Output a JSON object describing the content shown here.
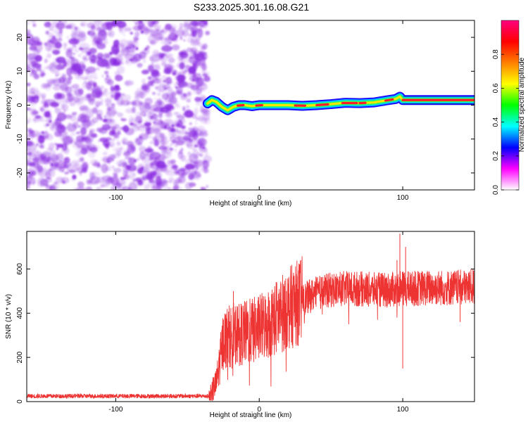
{
  "title": "S233.2025.301.16.08.G21",
  "chart_data": [
    {
      "type": "heatmap",
      "xlabel": "Height of straight line (km)",
      "ylabel": "Frequency (Hz)",
      "xlim": [
        -162,
        150
      ],
      "ylim": [
        -25,
        25
      ],
      "xticks": [
        -100,
        0,
        100
      ],
      "yticks": [
        -20,
        -10,
        0,
        10,
        20
      ],
      "colorbar": {
        "label": "Normalized spectral amplitude",
        "range": [
          0,
          1
        ],
        "ticks": [
          "0.0",
          "0.2",
          "0.4",
          "0.6",
          "0.8"
        ],
        "stops": [
          "#ffffff",
          "#ff00ff",
          "#0000ff",
          "#00ffff",
          "#00ff00",
          "#ffff00",
          "#ff8000",
          "#ff0000",
          "#ff0080"
        ]
      },
      "noise_region": {
        "x_from": -162,
        "x_to": -36,
        "color": "#8a2be2"
      },
      "signal_track": [
        {
          "x": -36,
          "f": 0.5
        },
        {
          "x": -33,
          "f": 1.5
        },
        {
          "x": -30,
          "f": 1.0
        },
        {
          "x": -26,
          "f": -0.5
        },
        {
          "x": -22,
          "f": -1.5
        },
        {
          "x": -18,
          "f": -0.5
        },
        {
          "x": -14,
          "f": 0.0
        },
        {
          "x": -10,
          "f": 0.0
        },
        {
          "x": -5,
          "f": -0.3
        },
        {
          "x": 0,
          "f": 0.0
        },
        {
          "x": 10,
          "f": 0.0
        },
        {
          "x": 20,
          "f": 0.0
        },
        {
          "x": 30,
          "f": -0.2
        },
        {
          "x": 40,
          "f": 0.0
        },
        {
          "x": 50,
          "f": 0.3
        },
        {
          "x": 60,
          "f": 0.7
        },
        {
          "x": 70,
          "f": 0.6
        },
        {
          "x": 80,
          "f": 0.8
        },
        {
          "x": 90,
          "f": 1.5
        },
        {
          "x": 95,
          "f": 1.8
        },
        {
          "x": 98,
          "f": 2.5
        },
        {
          "x": 100,
          "f": 1.5
        },
        {
          "x": 110,
          "f": 1.5
        },
        {
          "x": 130,
          "f": 1.5
        },
        {
          "x": 150,
          "f": 1.5
        }
      ]
    },
    {
      "type": "line",
      "xlabel": "Height of straight line (km)",
      "ylabel": "SNR (10 * v/v)",
      "xlim": [
        -162,
        150
      ],
      "ylim": [
        0,
        770
      ],
      "xticks": [
        -100,
        0,
        100
      ],
      "yticks": [
        0,
        200,
        400,
        600
      ],
      "series": [
        {
          "name": "SNR",
          "color": "#ee3333",
          "envelope": [
            {
              "x": -162,
              "v": 25
            },
            {
              "x": -35,
              "v": 25
            },
            {
              "x": -30,
              "v": 80
            },
            {
              "x": -25,
              "v": 280
            },
            {
              "x": -20,
              "v": 300
            },
            {
              "x": -10,
              "v": 310
            },
            {
              "x": 0,
              "v": 330
            },
            {
              "x": 10,
              "v": 370
            },
            {
              "x": 20,
              "v": 420
            },
            {
              "x": 30,
              "v": 460
            },
            {
              "x": 40,
              "v": 490
            },
            {
              "x": 50,
              "v": 505
            },
            {
              "x": 60,
              "v": 510
            },
            {
              "x": 70,
              "v": 510
            },
            {
              "x": 80,
              "v": 505
            },
            {
              "x": 90,
              "v": 505
            },
            {
              "x": 100,
              "v": 510
            },
            {
              "x": 110,
              "v": 512
            },
            {
              "x": 120,
              "v": 515
            },
            {
              "x": 130,
              "v": 515
            },
            {
              "x": 140,
              "v": 515
            },
            {
              "x": 150,
              "v": 520
            }
          ],
          "spikes": [
            {
              "x": -18,
              "v": 500
            },
            {
              "x": 96,
              "v": 640
            },
            {
              "x": 98,
              "v": 760
            },
            {
              "x": 100,
              "v": 150
            },
            {
              "x": 102,
              "v": 700
            },
            {
              "x": 140,
              "v": 360
            }
          ]
        }
      ]
    }
  ]
}
